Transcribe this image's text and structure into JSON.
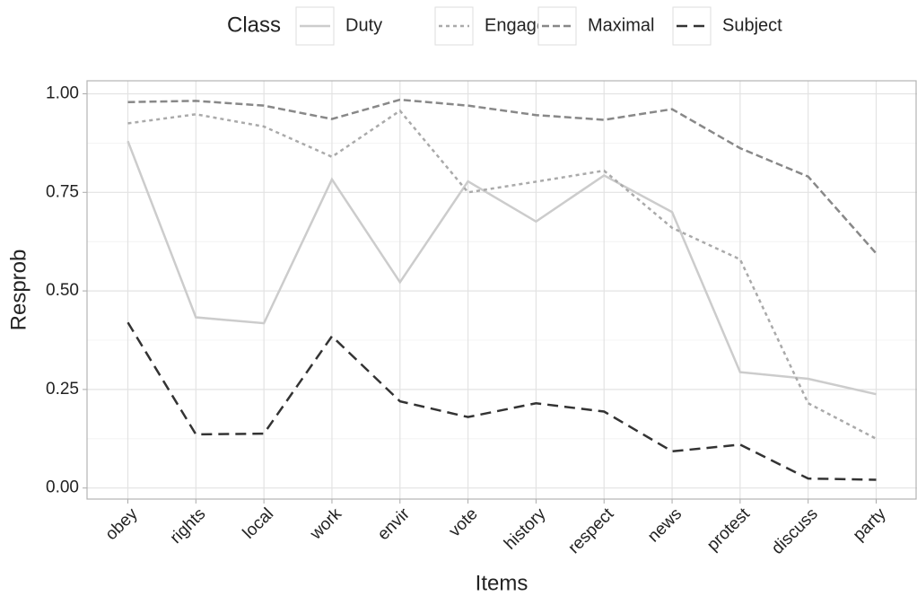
{
  "chart_data": {
    "type": "line",
    "x_label": "Items",
    "y_label": "Resprob",
    "legend_title": "Class",
    "legend_position": "top",
    "grid": true,
    "categories": [
      "obey",
      "rights",
      "local",
      "work",
      "envir",
      "vote",
      "history",
      "respect",
      "news",
      "protest",
      "discuss",
      "party"
    ],
    "ylim": [
      -0.028,
      1.033
    ],
    "yticks": [
      {
        "value": 0,
        "label": "0.00"
      },
      {
        "value": 0.25,
        "label": "0.25"
      },
      {
        "value": 0.5,
        "label": "0.50"
      },
      {
        "value": 0.75,
        "label": "0.75"
      },
      {
        "value": 1,
        "label": "1.00"
      }
    ],
    "series": [
      {
        "name": "Duty",
        "color": "#cccccc",
        "dash": "solid",
        "values": [
          0.88,
          0.433,
          0.418,
          0.783,
          0.522,
          0.778,
          0.676,
          0.793,
          0.7,
          0.294,
          0.277,
          0.238
        ]
      },
      {
        "name": "Engaged",
        "color": "#aaaaaa",
        "dash": "dotted",
        "values": [
          0.925,
          0.948,
          0.917,
          0.84,
          0.957,
          0.75,
          0.777,
          0.805,
          0.66,
          0.58,
          0.215,
          0.125
        ]
      },
      {
        "name": "Maximal",
        "color": "#888888",
        "dash": "dashed",
        "values": [
          0.979,
          0.982,
          0.97,
          0.936,
          0.985,
          0.97,
          0.946,
          0.934,
          0.961,
          0.862,
          0.79,
          0.595
        ]
      },
      {
        "name": "Subject",
        "color": "#333333",
        "dash": "longdash",
        "values": [
          0.42,
          0.136,
          0.138,
          0.385,
          0.22,
          0.18,
          0.215,
          0.194,
          0.093,
          0.11,
          0.024,
          0.021
        ]
      }
    ]
  }
}
